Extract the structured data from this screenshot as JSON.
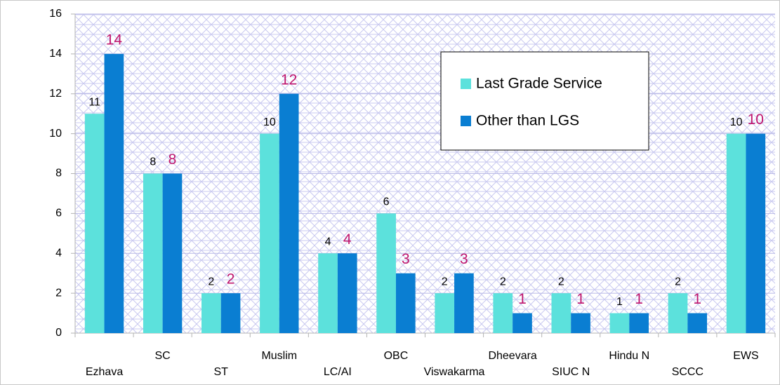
{
  "chart_data": {
    "type": "bar",
    "categories": [
      "Ezhava",
      "SC",
      "ST",
      "Muslim",
      "LC/AI",
      "OBC",
      "Viswakarma",
      "Dheevara",
      "SIUC N",
      "Hindu N",
      "SCCC",
      "EWS"
    ],
    "series": [
      {
        "name": "Last Grade Service",
        "color": "#5ce1dc",
        "label_color": "#000000",
        "values": [
          11,
          8,
          2,
          10,
          4,
          6,
          2,
          2,
          2,
          1,
          2,
          10
        ]
      },
      {
        "name": "Other than LGS",
        "color": "#0a7ed2",
        "label_color": "#c0166e",
        "values": [
          14,
          8,
          2,
          12,
          4,
          3,
          3,
          1,
          1,
          1,
          1,
          10
        ]
      }
    ],
    "ylim": [
      0,
      16
    ],
    "yticks": [
      0,
      2,
      4,
      6,
      8,
      10,
      12,
      14,
      16
    ],
    "grid": true
  }
}
